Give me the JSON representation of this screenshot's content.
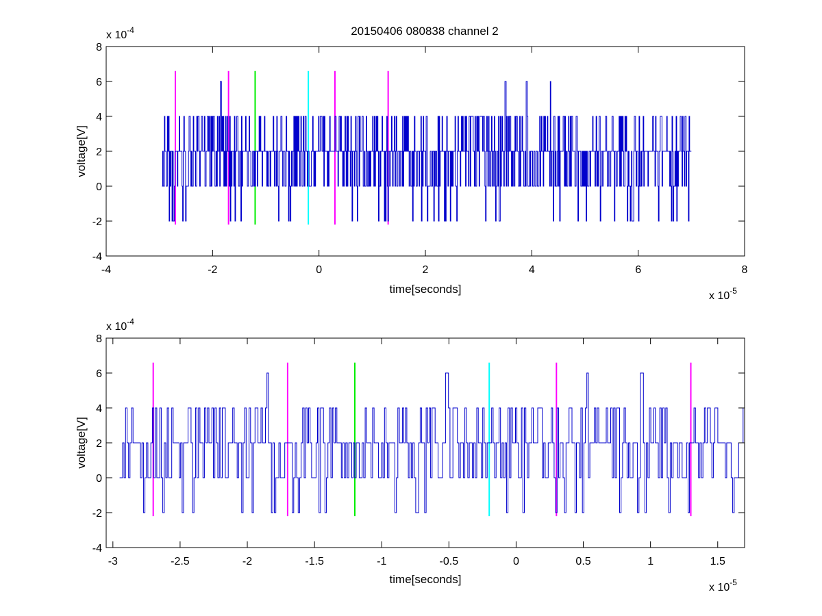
{
  "figure_title": "20150406 080838 channel 2",
  "colors": {
    "signal": "#0000cc",
    "axes": "#000000",
    "magenta_marker": "#ff00ff",
    "green_marker": "#00ee00",
    "cyan_marker": "#00ffff"
  },
  "chart_data": [
    {
      "type": "line",
      "title": "20150406 080838 channel 2",
      "xlabel": "time[seconds]",
      "ylabel": "voltage[V]",
      "x_scale_label": "x 10",
      "x_scale_exp": "-5",
      "y_scale_label": "x 10",
      "y_scale_exp": "-4",
      "xlim": [
        -4,
        8
      ],
      "ylim": [
        -4,
        8
      ],
      "xticks": [
        "-4",
        "-2",
        "0",
        "2",
        "4",
        "6",
        "8"
      ],
      "yticks": [
        "-4",
        "-2",
        "0",
        "2",
        "4",
        "6",
        "8"
      ],
      "grid": false,
      "series": [
        {
          "x_range": [
            -2.95,
            7.0
          ],
          "values_range": [
            -2,
            6
          ],
          "baseline": 2,
          "spikes_to_6": [
            -1.85,
            3.5,
            3.9,
            4.35
          ]
        }
      ],
      "vertical_markers": [
        {
          "x": -2.7,
          "color": "magenta",
          "y": [
            -2.2,
            6.6
          ]
        },
        {
          "x": -1.7,
          "color": "magenta",
          "y": [
            -2.2,
            6.6
          ]
        },
        {
          "x": -1.2,
          "color": "green",
          "y": [
            -2.2,
            6.6
          ]
        },
        {
          "x": -0.2,
          "color": "cyan",
          "y": [
            -2.2,
            6.6
          ]
        },
        {
          "x": 0.3,
          "color": "magenta",
          "y": [
            -2.2,
            6.6
          ]
        },
        {
          "x": 1.3,
          "color": "magenta",
          "y": [
            -2.2,
            6.6
          ]
        }
      ]
    },
    {
      "type": "line",
      "xlabel": "time[seconds]",
      "ylabel": "voltage[V]",
      "x_scale_label": "x 10",
      "x_scale_exp": "-5",
      "y_scale_label": "x 10",
      "y_scale_exp": "-4",
      "xlim": [
        -3.05,
        1.7
      ],
      "ylim": [
        -4,
        8
      ],
      "xticks": [
        "-3",
        "-2.5",
        "-2",
        "-1.5",
        "-1",
        "-0.5",
        "0",
        "0.5",
        "1",
        "1.5"
      ],
      "yticks": [
        "-4",
        "-2",
        "0",
        "2",
        "4",
        "6",
        "8"
      ],
      "grid": false,
      "series": [
        {
          "x_range": [
            -2.95,
            1.7
          ],
          "values_range": [
            -2,
            6
          ],
          "baseline": 2,
          "spikes_to_6": [
            -1.85,
            -0.52,
            0.53,
            0.93
          ]
        }
      ],
      "vertical_markers": [
        {
          "x": -2.7,
          "color": "magenta",
          "y": [
            -2.2,
            6.6
          ]
        },
        {
          "x": -1.7,
          "color": "magenta",
          "y": [
            -2.2,
            6.6
          ]
        },
        {
          "x": -1.2,
          "color": "green",
          "y": [
            -2.2,
            6.6
          ]
        },
        {
          "x": -0.2,
          "color": "cyan",
          "y": [
            -2.2,
            6.6
          ]
        },
        {
          "x": 0.3,
          "color": "magenta",
          "y": [
            -2.2,
            6.6
          ]
        },
        {
          "x": 1.3,
          "color": "magenta",
          "y": [
            -2.2,
            6.6
          ]
        }
      ]
    }
  ]
}
